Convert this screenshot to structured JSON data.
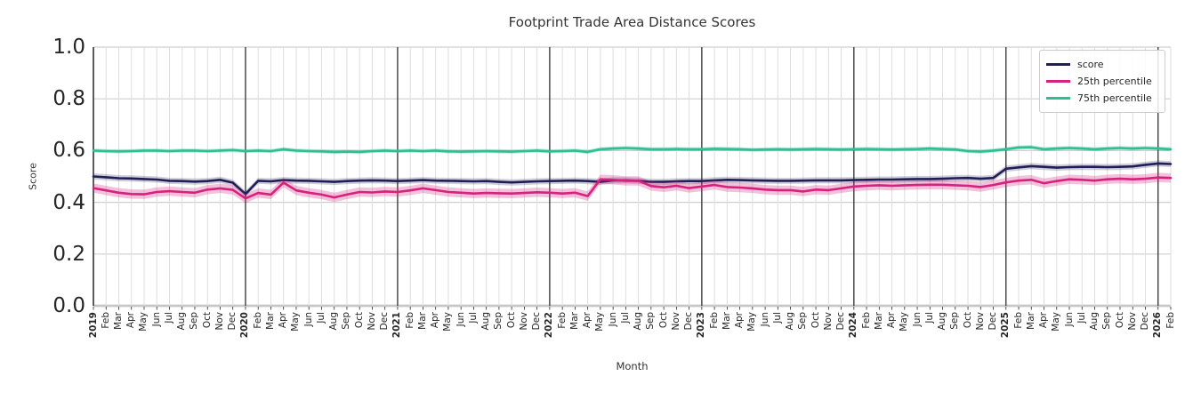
{
  "title": "Footprint Trade Area Distance Scores",
  "axes": {
    "xlabel": "Month",
    "ylabel": "Score",
    "yticks": [
      "0.0",
      "0.2",
      "0.4",
      "0.6",
      "0.8",
      "1.0"
    ],
    "ylim": [
      0.0,
      1.0
    ],
    "grid": true
  },
  "legend": {
    "position": "upper right"
  },
  "chart_data": {
    "type": "line",
    "title": "Footprint Trade Area Distance Scores",
    "xlabel": "Month",
    "ylabel": "Score",
    "ylim": [
      0.0,
      1.0
    ],
    "grid": true,
    "x": [
      "2019",
      "Feb",
      "Mar",
      "Apr",
      "May",
      "Jun",
      "Jul",
      "Aug",
      "Sep",
      "Oct",
      "Nov",
      "Dec",
      "2020",
      "Feb",
      "Mar",
      "Apr",
      "May",
      "Jun",
      "Jul",
      "Aug",
      "Sep",
      "Oct",
      "Nov",
      "Dec",
      "2021",
      "Feb",
      "Mar",
      "Apr",
      "May",
      "Jun",
      "Jul",
      "Aug",
      "Sep",
      "Oct",
      "Nov",
      "Dec",
      "2022",
      "Feb",
      "Mar",
      "Apr",
      "May",
      "Jun",
      "Jul",
      "Aug",
      "Sep",
      "Oct",
      "Nov",
      "Dec",
      "2023",
      "Feb",
      "Mar",
      "Apr",
      "May",
      "Jun",
      "Jul",
      "Aug",
      "Sep",
      "Oct",
      "Nov",
      "Dec",
      "2024",
      "Feb",
      "Mar",
      "Apr",
      "May",
      "Jun",
      "Jul",
      "Aug",
      "Sep",
      "Oct",
      "Nov",
      "Dec",
      "2025",
      "Feb",
      "Mar",
      "Apr",
      "May",
      "Jun",
      "Jul",
      "Aug",
      "Sep",
      "Oct",
      "Nov",
      "Dec",
      "2026",
      "Feb"
    ],
    "series": [
      {
        "name": "score",
        "color": "#211e55",
        "band_halfwidth": 0.012,
        "band_opacity": 0.22,
        "values": [
          0.5,
          0.497,
          0.493,
          0.492,
          0.49,
          0.488,
          0.483,
          0.482,
          0.48,
          0.482,
          0.487,
          0.476,
          0.432,
          0.483,
          0.481,
          0.486,
          0.484,
          0.483,
          0.481,
          0.479,
          0.482,
          0.484,
          0.485,
          0.484,
          0.482,
          0.484,
          0.486,
          0.484,
          0.483,
          0.482,
          0.481,
          0.482,
          0.479,
          0.477,
          0.479,
          0.481,
          0.482,
          0.483,
          0.484,
          0.482,
          0.479,
          0.485,
          0.485,
          0.483,
          0.479,
          0.479,
          0.481,
          0.482,
          0.482,
          0.485,
          0.487,
          0.486,
          0.485,
          0.484,
          0.483,
          0.483,
          0.484,
          0.485,
          0.485,
          0.485,
          0.486,
          0.487,
          0.488,
          0.488,
          0.489,
          0.49,
          0.49,
          0.491,
          0.493,
          0.494,
          0.491,
          0.494,
          0.53,
          0.535,
          0.54,
          0.537,
          0.534,
          0.536,
          0.537,
          0.537,
          0.536,
          0.537,
          0.539,
          0.545,
          0.55,
          0.548
        ]
      },
      {
        "name": "25th percentile",
        "color": "#d6217f",
        "band_halfwidth": 0.018,
        "band_opacity": 0.28,
        "values": [
          0.455,
          0.446,
          0.437,
          0.432,
          0.431,
          0.44,
          0.443,
          0.44,
          0.437,
          0.449,
          0.454,
          0.448,
          0.415,
          0.436,
          0.43,
          0.476,
          0.446,
          0.437,
          0.43,
          0.419,
          0.43,
          0.44,
          0.438,
          0.442,
          0.44,
          0.446,
          0.454,
          0.447,
          0.44,
          0.437,
          0.434,
          0.436,
          0.435,
          0.434,
          0.436,
          0.439,
          0.437,
          0.434,
          0.437,
          0.424,
          0.489,
          0.487,
          0.483,
          0.483,
          0.463,
          0.458,
          0.464,
          0.455,
          0.461,
          0.467,
          0.459,
          0.457,
          0.454,
          0.449,
          0.447,
          0.447,
          0.442,
          0.449,
          0.447,
          0.454,
          0.461,
          0.464,
          0.466,
          0.464,
          0.466,
          0.467,
          0.468,
          0.468,
          0.466,
          0.464,
          0.459,
          0.467,
          0.477,
          0.484,
          0.487,
          0.474,
          0.482,
          0.489,
          0.487,
          0.484,
          0.489,
          0.491,
          0.489,
          0.491,
          0.496,
          0.494
        ]
      },
      {
        "name": "75th percentile",
        "color": "#2ebe91",
        "band_halfwidth": 0.008,
        "band_opacity": 0.3,
        "values": [
          0.6,
          0.598,
          0.597,
          0.598,
          0.6,
          0.6,
          0.598,
          0.6,
          0.6,
          0.598,
          0.6,
          0.602,
          0.598,
          0.6,
          0.598,
          0.605,
          0.6,
          0.598,
          0.597,
          0.595,
          0.596,
          0.595,
          0.598,
          0.6,
          0.598,
          0.6,
          0.598,
          0.6,
          0.597,
          0.596,
          0.597,
          0.598,
          0.597,
          0.596,
          0.598,
          0.6,
          0.597,
          0.598,
          0.6,
          0.595,
          0.605,
          0.608,
          0.61,
          0.608,
          0.605,
          0.605,
          0.606,
          0.605,
          0.605,
          0.607,
          0.606,
          0.605,
          0.603,
          0.604,
          0.605,
          0.604,
          0.605,
          0.606,
          0.605,
          0.604,
          0.605,
          0.606,
          0.605,
          0.604,
          0.605,
          0.606,
          0.608,
          0.606,
          0.604,
          0.598,
          0.596,
          0.6,
          0.605,
          0.612,
          0.613,
          0.605,
          0.608,
          0.61,
          0.608,
          0.605,
          0.608,
          0.61,
          0.608,
          0.61,
          0.608,
          0.605
        ]
      }
    ],
    "legend_position": "upper right"
  },
  "colors": {
    "background": "#ffffff",
    "grid_minor": "#dedede",
    "grid_major": "#cfcfcf",
    "year_line": "#2f2f2f",
    "axis_spine": "#262626"
  }
}
